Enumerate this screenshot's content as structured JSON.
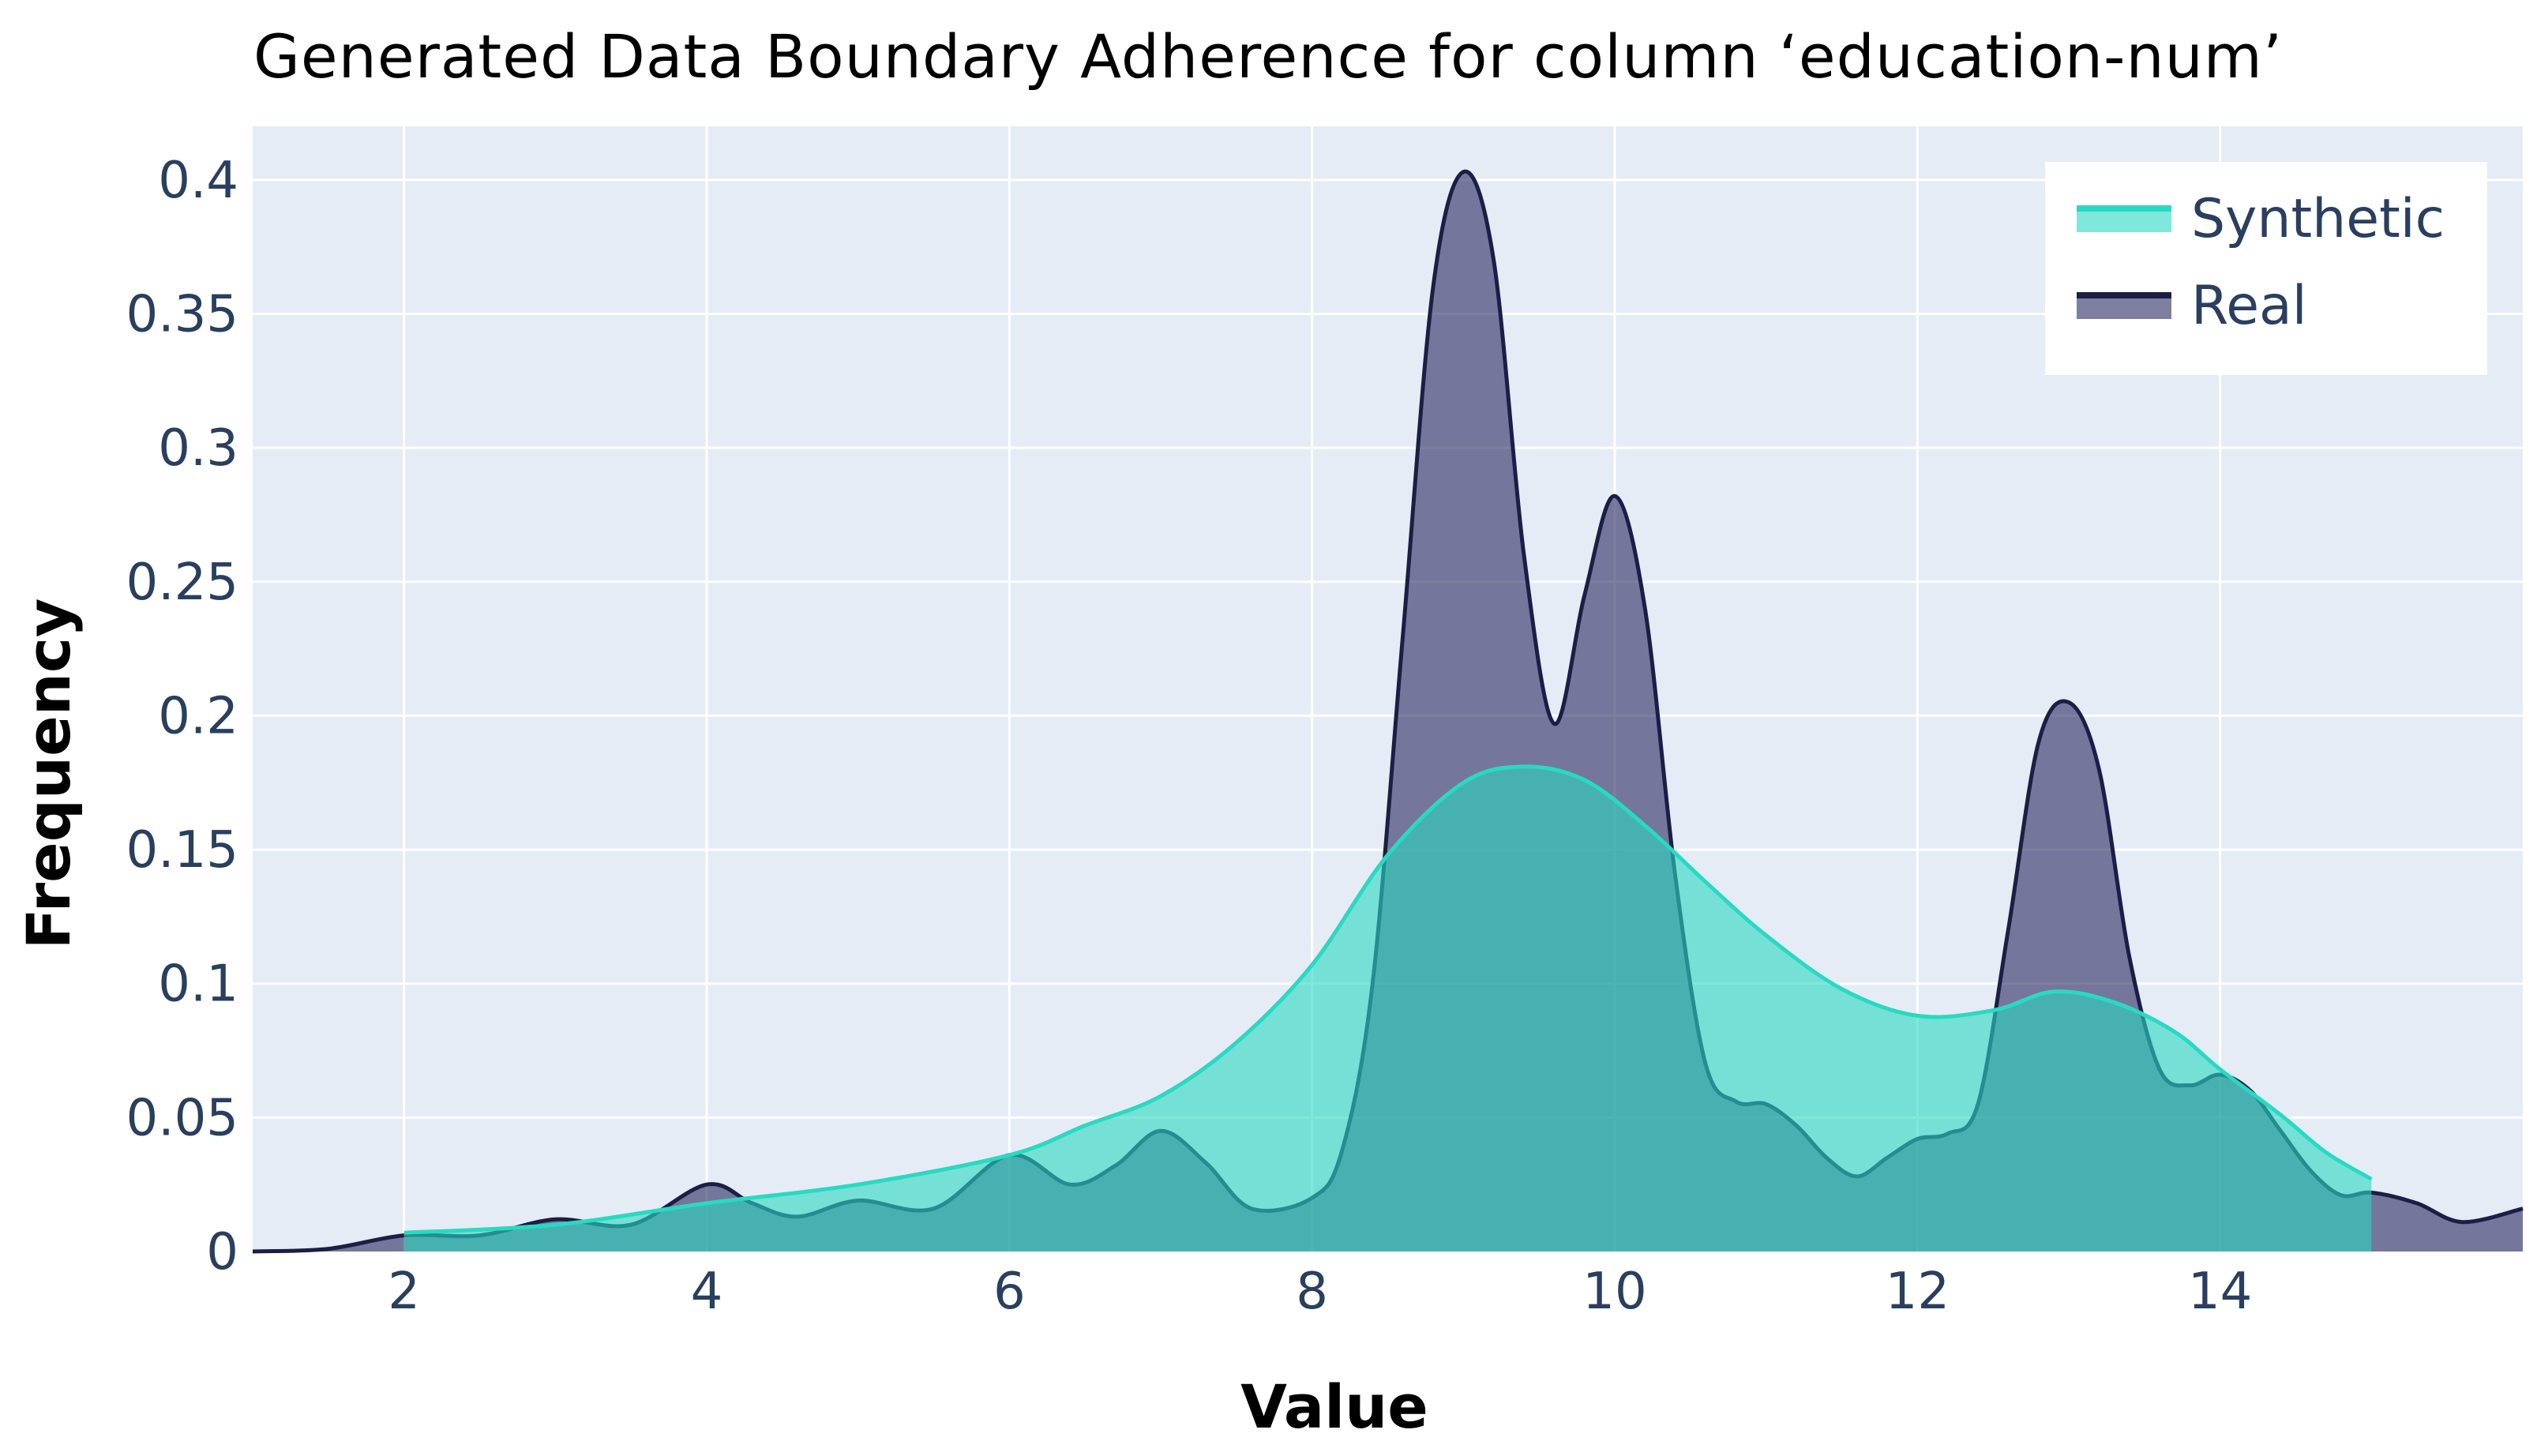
{
  "chart_data": {
    "type": "area",
    "title": "Generated Data Boundary Adherence for column ‘education-num’",
    "xlabel": "Value",
    "ylabel": "Frequency",
    "xlim": [
      1,
      16
    ],
    "ylim": [
      0,
      0.42
    ],
    "xticks": [
      2,
      4,
      6,
      8,
      10,
      12,
      14
    ],
    "xtick_labels": [
      "2",
      "4",
      "6",
      "8",
      "10",
      "12",
      "14"
    ],
    "yticks": [
      0,
      0.05,
      0.1,
      0.15,
      0.2,
      0.25,
      0.3,
      0.35,
      0.4
    ],
    "ytick_labels": [
      "0",
      "0.05",
      "0.1",
      "0.15",
      "0.2",
      "0.25",
      "0.3",
      "0.35",
      "0.4"
    ],
    "grid": true,
    "legend_position": "top-right",
    "series": [
      {
        "name": "Real",
        "color": "#1b1e45",
        "fill": "rgba(40, 42, 95, 0.6)",
        "x": [
          1.0,
          1.5,
          2.0,
          2.5,
          3.0,
          3.5,
          4.0,
          4.3,
          4.6,
          5.0,
          5.5,
          6.0,
          6.4,
          6.7,
          7.0,
          7.3,
          7.6,
          8.0,
          8.2,
          8.4,
          8.6,
          8.8,
          9.0,
          9.2,
          9.4,
          9.6,
          9.8,
          10.0,
          10.2,
          10.4,
          10.6,
          10.8,
          11.0,
          11.2,
          11.4,
          11.6,
          11.8,
          12.0,
          12.2,
          12.4,
          12.6,
          12.8,
          13.0,
          13.2,
          13.4,
          13.6,
          13.8,
          14.0,
          14.2,
          14.4,
          14.6,
          14.8,
          15.0,
          15.3,
          15.6,
          16.0
        ],
        "y": [
          0.0,
          0.001,
          0.006,
          0.006,
          0.012,
          0.01,
          0.025,
          0.018,
          0.013,
          0.019,
          0.016,
          0.036,
          0.025,
          0.032,
          0.045,
          0.033,
          0.016,
          0.02,
          0.038,
          0.1,
          0.23,
          0.36,
          0.403,
          0.37,
          0.26,
          0.197,
          0.245,
          0.282,
          0.24,
          0.14,
          0.07,
          0.056,
          0.055,
          0.047,
          0.035,
          0.028,
          0.035,
          0.042,
          0.044,
          0.055,
          0.12,
          0.19,
          0.205,
          0.18,
          0.11,
          0.068,
          0.062,
          0.066,
          0.06,
          0.045,
          0.03,
          0.021,
          0.022,
          0.018,
          0.011,
          0.016
        ]
      },
      {
        "name": "Synthetic",
        "color": "#29d9c2",
        "fill": "rgba(41, 217, 194, 0.6)",
        "x": [
          2.0,
          3.0,
          4.0,
          5.0,
          6.0,
          6.5,
          7.0,
          7.5,
          8.0,
          8.5,
          9.0,
          9.4,
          9.8,
          10.2,
          10.6,
          11.0,
          11.5,
          12.0,
          12.5,
          12.9,
          13.3,
          13.7,
          14.0,
          14.4,
          14.7,
          15.0
        ],
        "y": [
          0.007,
          0.01,
          0.018,
          0.025,
          0.036,
          0.047,
          0.058,
          0.078,
          0.107,
          0.148,
          0.175,
          0.181,
          0.176,
          0.159,
          0.138,
          0.118,
          0.098,
          0.088,
          0.09,
          0.097,
          0.093,
          0.082,
          0.068,
          0.051,
          0.037,
          0.027
        ]
      }
    ],
    "legend_order": [
      "Synthetic",
      "Real"
    ]
  }
}
